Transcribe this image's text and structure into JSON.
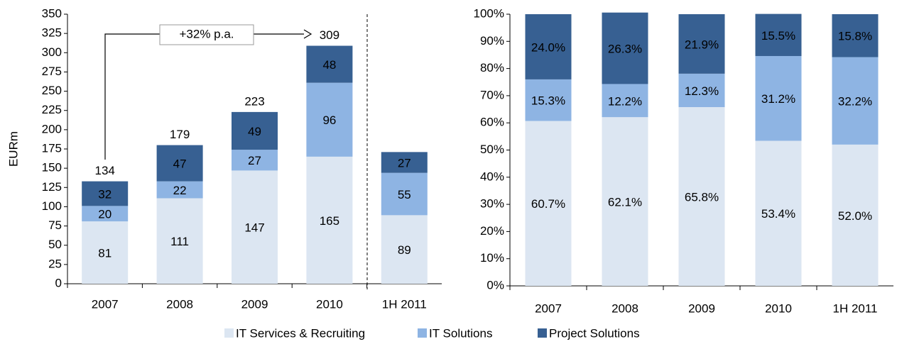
{
  "chart_data": [
    {
      "type": "stacked_bar",
      "ylabel": "EURm",
      "categories": [
        "2007",
        "2008",
        "2009",
        "2010",
        "1H 2011"
      ],
      "series": [
        {
          "name": "IT Services & Recruiting",
          "color": "#dce6f2",
          "values": [
            81,
            111,
            147,
            165,
            89
          ]
        },
        {
          "name": "IT Solutions",
          "color": "#8eb4e3",
          "values": [
            20,
            22,
            27,
            96,
            55
          ]
        },
        {
          "name": "Project Solutions",
          "color": "#376092",
          "values": [
            32,
            47,
            49,
            48,
            27
          ]
        }
      ],
      "totals": [
        134,
        179,
        223,
        309,
        null
      ],
      "annotation": "+32% p.a.",
      "ylim": [
        0,
        350
      ],
      "yticks": [
        0,
        25,
        50,
        75,
        100,
        125,
        150,
        175,
        200,
        225,
        250,
        275,
        300,
        325,
        350
      ]
    },
    {
      "type": "stacked_bar",
      "categories": [
        "2007",
        "2008",
        "2009",
        "2010",
        "1H 2011"
      ],
      "series": [
        {
          "color": "#dce6f2",
          "values": [
            60.7,
            62.1,
            65.8,
            53.4,
            52.0
          ],
          "value_labels": [
            "60.7%",
            "62.1%",
            "65.8%",
            "53.4%",
            "52.0%"
          ]
        },
        {
          "color": "#8eb4e3",
          "values": [
            15.3,
            12.2,
            12.3,
            31.2,
            32.2
          ],
          "value_labels": [
            "15.3%",
            "12.2%",
            "12.3%",
            "31.2%",
            "32.2%"
          ]
        },
        {
          "color": "#376092",
          "values": [
            24.0,
            26.3,
            21.9,
            15.5,
            15.8
          ],
          "value_labels": [
            "24.0%",
            "26.3%",
            "21.9%",
            "15.5%",
            "15.8%"
          ]
        }
      ],
      "ylim": [
        0,
        100
      ],
      "yticks": [
        {
          "value": 0,
          "label": "0%"
        },
        {
          "value": 10,
          "label": "10%"
        },
        {
          "value": 20,
          "label": "20%"
        },
        {
          "value": 30,
          "label": "30%"
        },
        {
          "value": 40,
          "label": "40%"
        },
        {
          "value": 50,
          "label": "50%"
        },
        {
          "value": 60,
          "label": "60%"
        },
        {
          "value": 70,
          "label": "70%"
        },
        {
          "value": 80,
          "label": "80%"
        },
        {
          "value": 90,
          "label": "90%"
        },
        {
          "value": 100,
          "label": "100%"
        }
      ]
    }
  ]
}
